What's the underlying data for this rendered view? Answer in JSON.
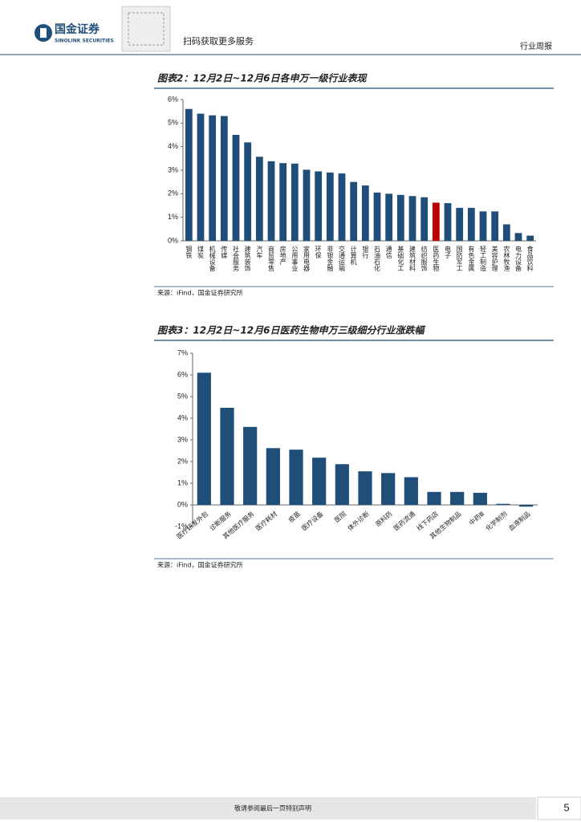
{
  "header": {
    "company": "国金证券",
    "company_en": "SINOLINK SECURITIES",
    "qr_text": "扫码获取更多服务",
    "report_type": "行业周报"
  },
  "chart_data": [
    {
      "type": "bar",
      "title": "图表2：12月2日~12月6日各申万一级行业表现",
      "categories": [
        "钢铁",
        "煤炭",
        "机械设备",
        "传媒",
        "社会服务",
        "建筑装饰",
        "汽车",
        "商贸零售",
        "房地产",
        "公用事业",
        "家用电器",
        "环保",
        "非银金融",
        "交通运输",
        "计算机",
        "银行",
        "石油石化",
        "通信",
        "基础化工",
        "建筑材料",
        "纺织服饰",
        "医药生物",
        "电子",
        "国防军工",
        "有色金属",
        "轻工制造",
        "美容护理",
        "农林牧渔",
        "电力设备",
        "食品饮料"
      ],
      "values": [
        5.6,
        5.4,
        5.33,
        5.3,
        4.5,
        4.18,
        3.57,
        3.38,
        3.3,
        3.28,
        3.02,
        2.95,
        2.9,
        2.86,
        2.5,
        2.35,
        2.05,
        2.0,
        1.95,
        1.9,
        1.85,
        1.62,
        1.6,
        1.4,
        1.4,
        1.25,
        1.25,
        0.7,
        0.33,
        0.22
      ],
      "colors": [
        "#1f4e79",
        "#1f4e79",
        "#1f4e79",
        "#1f4e79",
        "#1f4e79",
        "#1f4e79",
        "#1f4e79",
        "#1f4e79",
        "#1f4e79",
        "#1f4e79",
        "#1f4e79",
        "#1f4e79",
        "#1f4e79",
        "#1f4e79",
        "#1f4e79",
        "#1f4e79",
        "#1f4e79",
        "#1f4e79",
        "#1f4e79",
        "#1f4e79",
        "#1f4e79",
        "#c00000",
        "#1f4e79",
        "#1f4e79",
        "#1f4e79",
        "#1f4e79",
        "#1f4e79",
        "#1f4e79",
        "#1f4e79",
        "#1f4e79"
      ],
      "ylim": [
        0,
        6
      ],
      "yticks": [
        {
          "value": 0,
          "label": "0%"
        },
        {
          "value": 1,
          "label": "1%"
        },
        {
          "value": 2,
          "label": "2%"
        },
        {
          "value": 3,
          "label": "3%"
        },
        {
          "value": 4,
          "label": "4%"
        },
        {
          "value": 5,
          "label": "5%"
        },
        {
          "value": 6,
          "label": "6%"
        }
      ],
      "source": "来源：iFind，国金证券研究所"
    },
    {
      "type": "bar",
      "title": "图表3：12月2日~12月6日医药生物申万三级细分行业涨跌幅",
      "categories": [
        "医疗研发外包",
        "诊断服务",
        "其他医疗服务",
        "医疗耗材",
        "疫苗",
        "医疗设备",
        "医院",
        "体外诊断",
        "原料药",
        "医药流通",
        "线下药店",
        "其他生物制品",
        "中药Ⅲ",
        "化学制剂",
        "血液制品"
      ],
      "values": [
        6.1,
        4.48,
        3.6,
        2.62,
        2.55,
        2.18,
        1.88,
        1.55,
        1.47,
        1.28,
        0.6,
        0.6,
        0.56,
        0.05,
        -0.08
      ],
      "color": "#1f4e79",
      "ylim": [
        -1,
        7
      ],
      "yticks": [
        {
          "value": -1,
          "label": "-1%"
        },
        {
          "value": 0,
          "label": "0%"
        },
        {
          "value": 1,
          "label": "1%"
        },
        {
          "value": 2,
          "label": "2%"
        },
        {
          "value": 3,
          "label": "3%"
        },
        {
          "value": 4,
          "label": "4%"
        },
        {
          "value": 5,
          "label": "5%"
        },
        {
          "value": 6,
          "label": "6%"
        },
        {
          "value": 7,
          "label": "7%"
        }
      ],
      "source": "来源：iFind，国金证券研究所"
    }
  ],
  "footer": {
    "disclaimer": "敬请参阅最后一页特别声明",
    "page": "5"
  }
}
